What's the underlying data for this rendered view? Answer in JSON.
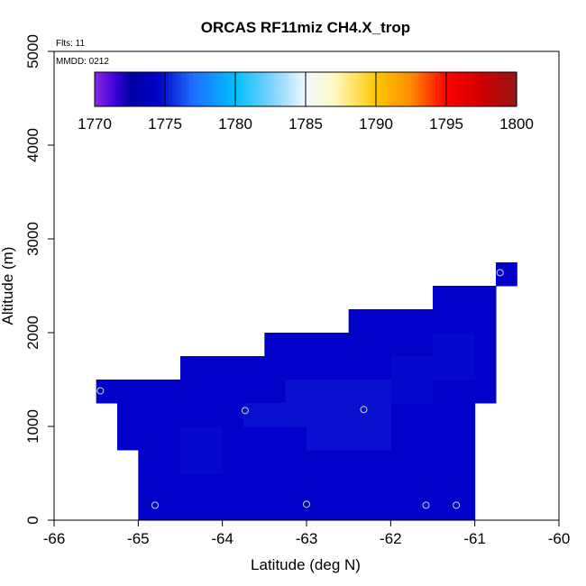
{
  "chart_data": {
    "type": "heatmap",
    "title": "ORCAS RF11miz CH4.X_trop",
    "annotations": {
      "flights": "Flts: 11",
      "mmdd": "MMDD: 0212"
    },
    "xlabel": "Latitude (deg N)",
    "ylabel": "Altitude (m)",
    "xlim": [
      -66,
      -60
    ],
    "ylim": [
      0,
      5000
    ],
    "x_ticks": [
      -66,
      -65,
      -64,
      -63,
      -62,
      -61,
      -60
    ],
    "y_ticks": [
      0,
      1000,
      2000,
      3000,
      4000,
      5000
    ],
    "grid": false,
    "colorbar": {
      "min": 1770,
      "max": 1800,
      "ticks": [
        1770,
        1775,
        1780,
        1785,
        1790,
        1795,
        1800
      ],
      "placement": "top"
    },
    "colors": {
      "cell_dark": "#0000C8",
      "cell_mid": "#0508CC",
      "cell_light": "#0A10D0",
      "marker": "#d0d0d0"
    },
    "cells": [
      {
        "lat0": -65.5,
        "lat1": -64.5,
        "alt0": 1250,
        "alt1": 1500,
        "value": 1773.5
      },
      {
        "lat0": -65.25,
        "lat1": -65.0,
        "alt0": 750,
        "alt1": 1250,
        "value": 1773.5
      },
      {
        "lat0": -65.0,
        "lat1": -64.5,
        "alt0": 0,
        "alt1": 1250,
        "value": 1773.5
      },
      {
        "lat0": -64.5,
        "lat1": -63.5,
        "alt0": 0,
        "alt1": 1750,
        "value": 1773.5
      },
      {
        "lat0": -63.5,
        "lat1": -62.5,
        "alt0": 0,
        "alt1": 2000,
        "value": 1773.5
      },
      {
        "lat0": -62.5,
        "lat1": -61.5,
        "alt0": 0,
        "alt1": 2250,
        "value": 1773.5
      },
      {
        "lat0": -61.5,
        "lat1": -61.25,
        "alt0": 0,
        "alt1": 2500,
        "value": 1773.5
      },
      {
        "lat0": -61.25,
        "lat1": -61.0,
        "alt0": 0,
        "alt1": 2500,
        "value": 1773.5
      },
      {
        "lat0": -61.0,
        "lat1": -60.75,
        "alt0": 1250,
        "alt1": 2500,
        "value": 1773.5
      },
      {
        "lat0": -60.75,
        "lat1": -60.5,
        "alt0": 2500,
        "alt1": 2750,
        "value": 1773.5
      },
      {
        "lat0": -63.75,
        "lat1": -62.0,
        "alt0": 1000,
        "alt1": 1250,
        "value": 1774.0
      },
      {
        "lat0": -63.25,
        "lat1": -62.0,
        "alt0": 1250,
        "alt1": 1500,
        "value": 1774.0
      },
      {
        "lat0": -63.0,
        "lat1": -62.0,
        "alt0": 750,
        "alt1": 1000,
        "value": 1774.0
      },
      {
        "lat0": -64.5,
        "lat1": -64.0,
        "alt0": 500,
        "alt1": 1000,
        "value": 1773.8
      },
      {
        "lat0": -62.0,
        "lat1": -61.5,
        "alt0": 1250,
        "alt1": 1750,
        "value": 1773.8
      },
      {
        "lat0": -61.5,
        "lat1": -61.0,
        "alt0": 1500,
        "alt1": 2000,
        "value": 1773.8
      }
    ],
    "points": [
      {
        "lat": -65.45,
        "alt": 1380
      },
      {
        "lat": -63.73,
        "alt": 1170
      },
      {
        "lat": -62.32,
        "alt": 1180
      },
      {
        "lat": -64.8,
        "alt": 160
      },
      {
        "lat": -63.0,
        "alt": 170
      },
      {
        "lat": -61.58,
        "alt": 160
      },
      {
        "lat": -61.22,
        "alt": 160
      },
      {
        "lat": -60.7,
        "alt": 2640
      }
    ]
  }
}
